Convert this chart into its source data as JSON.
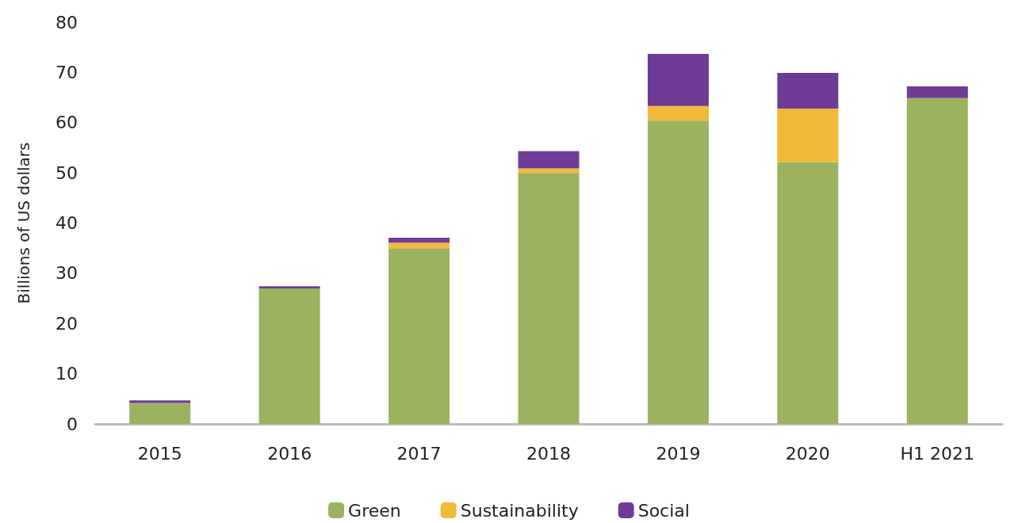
{
  "chart_data": {
    "type": "bar",
    "stacked": true,
    "ylabel": "Billions of US dollars",
    "categories": [
      "2015",
      "2016",
      "2017",
      "2018",
      "2019",
      "2020",
      "H1 2021"
    ],
    "series": [
      {
        "name": "Green",
        "color": "#9bb35f",
        "values": [
          4.2,
          27.0,
          35.0,
          50.0,
          60.4,
          52.1,
          64.9
        ]
      },
      {
        "name": "Sustainability",
        "color": "#f2b83a",
        "values": [
          0,
          0,
          1.1,
          0.9,
          2.9,
          10.7,
          0
        ]
      },
      {
        "name": "Social",
        "color": "#6e3c96",
        "values": [
          0.5,
          0.4,
          1.0,
          3.4,
          10.4,
          7.1,
          2.3
        ]
      }
    ],
    "ylim": [
      0,
      80
    ],
    "yticks": [
      0,
      10,
      20,
      30,
      40,
      50,
      60,
      70,
      80
    ],
    "grid": false,
    "legend": "bottom"
  }
}
